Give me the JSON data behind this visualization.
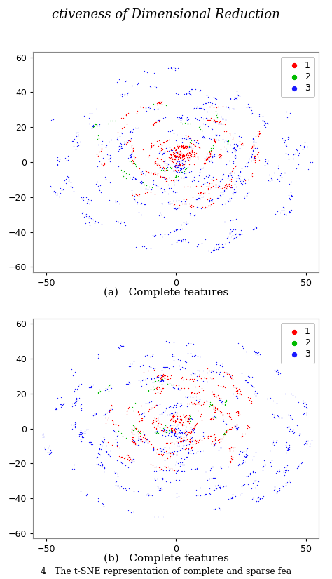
{
  "subplot_a_label": "(a)   Complete features",
  "subplot_b_label": "(b)   Complete features",
  "title_italic": "ctiveness of Dimensional Reduction",
  "figure_note": "4   The t-SNE representation of complete and sparse fea",
  "xlim": [
    -55,
    55
  ],
  "ylim": [
    -63,
    63
  ],
  "xticks": [
    -50,
    0,
    50
  ],
  "yticks": [
    -60,
    -40,
    -20,
    0,
    20,
    40,
    60
  ],
  "legend_labels": [
    "1",
    "2",
    "3"
  ],
  "colors": [
    "#ff0000",
    "#00bb00",
    "#1a1aff"
  ],
  "dot_size": 3.5,
  "background_color": "#ffffff",
  "fig_width": 4.74,
  "fig_height": 8.25,
  "dpi": 100,
  "seed_a": 42,
  "seed_b": 43
}
